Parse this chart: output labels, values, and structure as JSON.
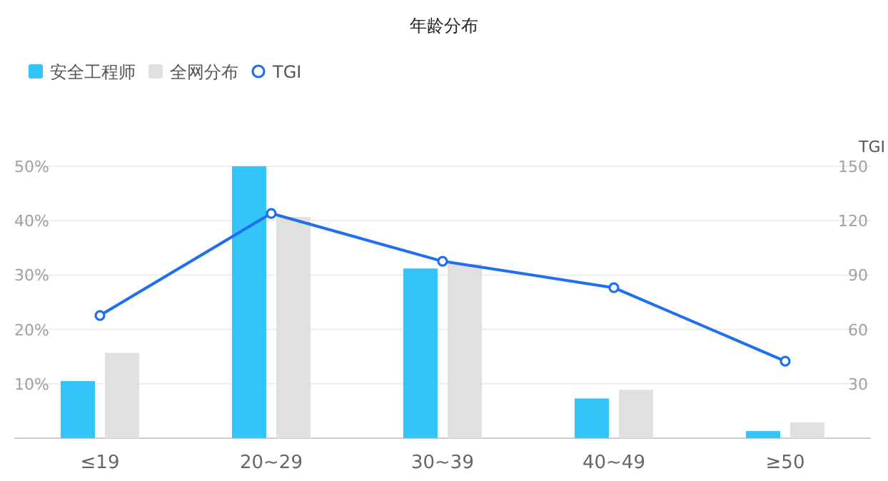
{
  "chart_data": {
    "type": "bar",
    "title": "年龄分布",
    "y2label": "TGI",
    "categories": [
      "≤19",
      "20~29",
      "30~39",
      "40~49",
      "≥50"
    ],
    "series": [
      {
        "name": "安全工程师",
        "color": "#33c5f7",
        "values": [
          10.5,
          50,
          31.2,
          7.3,
          1.3
        ]
      },
      {
        "name": "全网分布",
        "color": "#e0e0e0",
        "values": [
          15.7,
          40.7,
          32,
          8.9,
          2.9
        ]
      },
      {
        "name": "TGI",
        "type": "line",
        "axis": "y2",
        "color": "#1f6fef",
        "marker": "circle",
        "values": [
          67.7,
          124,
          97.6,
          83,
          42.5
        ]
      }
    ],
    "ylim": [
      0,
      50
    ],
    "yticks": [
      {
        "value": 0,
        "label": null
      },
      {
        "value": 10,
        "label": "10%"
      },
      {
        "value": 20,
        "label": "20%"
      },
      {
        "value": 30,
        "label": "30%"
      },
      {
        "value": 40,
        "label": "40%"
      },
      {
        "value": 50,
        "label": "50%"
      }
    ],
    "y2lim": [
      0,
      150
    ],
    "y2ticks": [
      30,
      60,
      90,
      120,
      150
    ],
    "grid": "y",
    "legend": "top left"
  }
}
